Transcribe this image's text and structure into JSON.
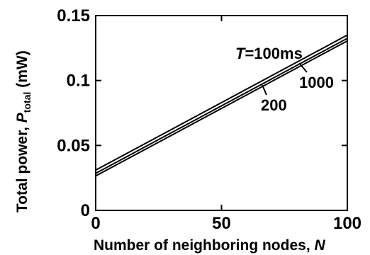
{
  "chart_data": {
    "type": "line",
    "xlabel_main": "Number of neighboring nodes, ",
    "xlabel_var": "N",
    "ylabel_main": "Total power, ",
    "ylabel_var": "P",
    "ylabel_sub": "total",
    "ylabel_unit": " (mW)",
    "xlim": [
      0,
      100
    ],
    "ylim": [
      0,
      0.15
    ],
    "xticks": [
      {
        "value": 0,
        "label": "0"
      },
      {
        "value": 50,
        "label": "50"
      },
      {
        "value": 100,
        "label": "100"
      }
    ],
    "yticks": [
      {
        "value": 0,
        "label": "0"
      },
      {
        "value": 0.05,
        "label": "0.05"
      },
      {
        "value": 0.1,
        "label": "0.1"
      },
      {
        "value": 0.15,
        "label": "0.15"
      }
    ],
    "grid": false,
    "series": [
      {
        "name": "T=100ms",
        "x": [
          0,
          100
        ],
        "y": [
          0.031,
          0.135
        ],
        "color": "#000000"
      },
      {
        "name": "200",
        "x": [
          0,
          100
        ],
        "y": [
          0.0285,
          0.1325
        ],
        "color": "#000000"
      },
      {
        "name": "1000",
        "x": [
          0,
          100
        ],
        "y": [
          0.0265,
          0.1305
        ],
        "color": "#000000"
      }
    ],
    "annotations": [
      {
        "series": "T=100ms",
        "var": "T",
        "text": "=100ms"
      },
      {
        "series": "200",
        "text": "200"
      },
      {
        "series": "1000",
        "text": "1000"
      }
    ]
  }
}
